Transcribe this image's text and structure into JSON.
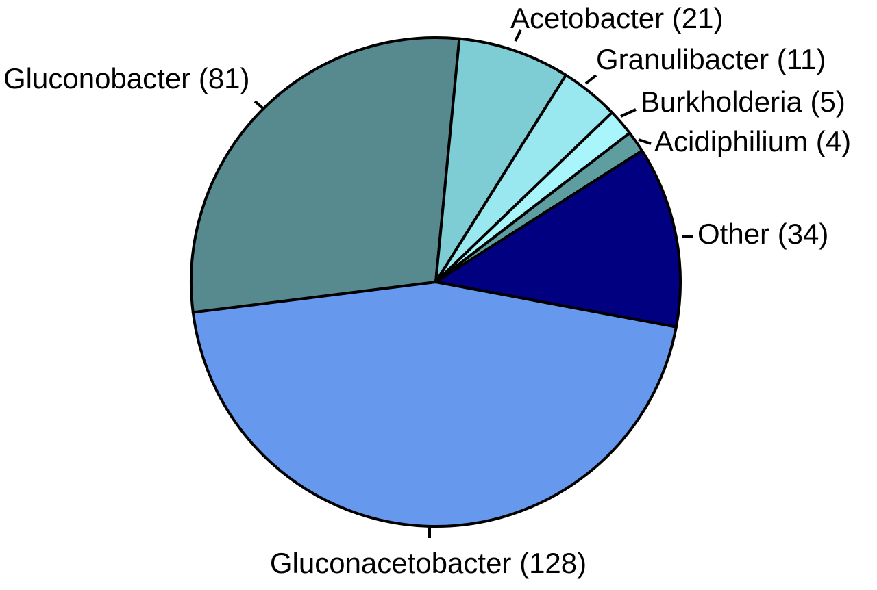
{
  "chart_data": {
    "type": "pie",
    "categories": [
      "Gluconacetobacter (128)",
      "Gluconobacter (81)",
      "Acetobacter (21)",
      "Granulibacter (11)",
      "Burkholderia (5)",
      "Acidiphilium (4)",
      "Other (34)"
    ],
    "values": [
      128,
      81,
      21,
      11,
      5,
      4,
      34
    ],
    "colors": [
      "#6699ee",
      "#568a8f",
      "#7fcdd4",
      "#99e8f0",
      "#a8f5fc",
      "#5f9ea0",
      "#000080"
    ]
  }
}
